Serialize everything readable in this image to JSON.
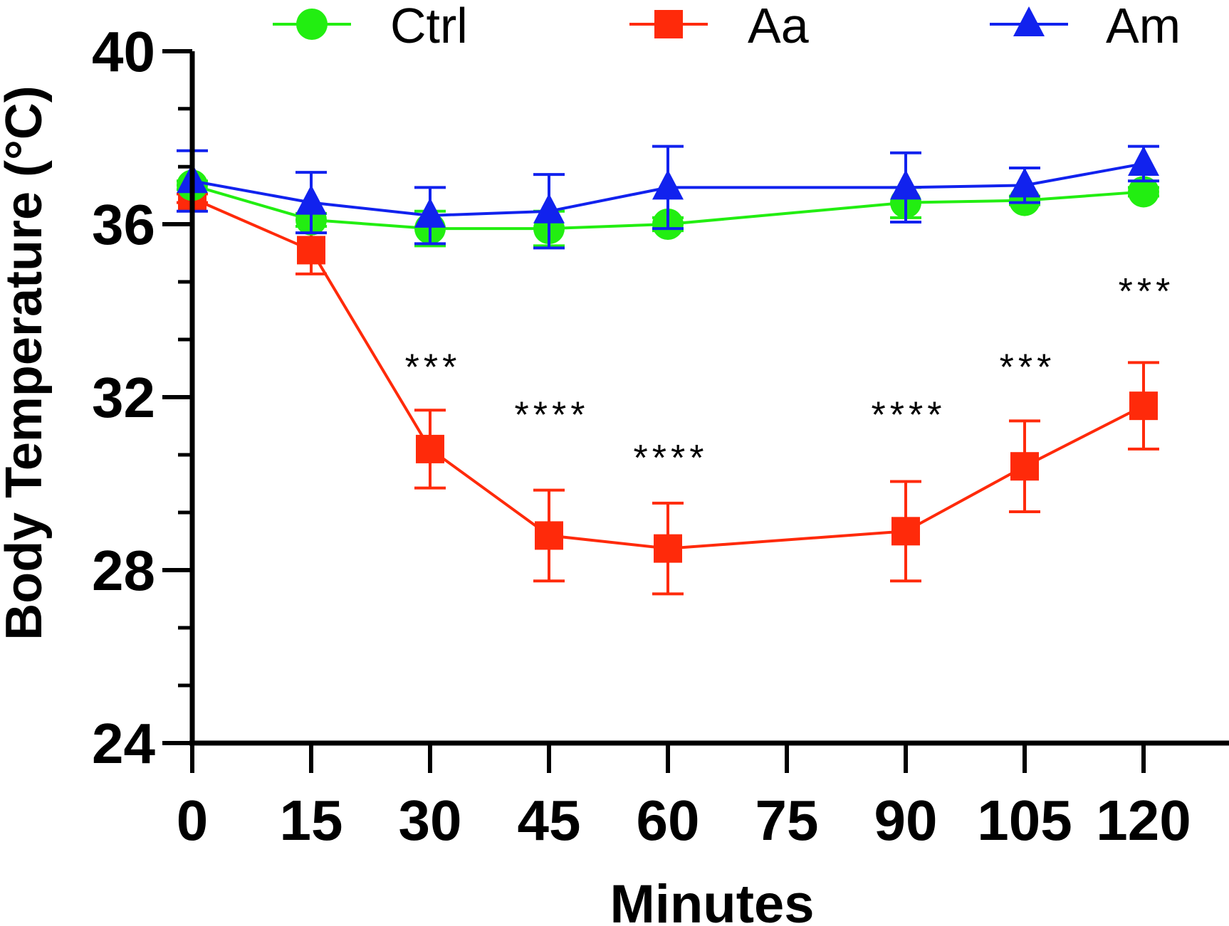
{
  "chart_data": {
    "type": "line",
    "title": "",
    "xlabel": "Minutes",
    "ylabel": "Body Temperature (°C)",
    "xlim": [
      0,
      130
    ],
    "ylim": [
      24,
      40
    ],
    "x_ticks": [
      0,
      15,
      30,
      45,
      60,
      75,
      90,
      105,
      120
    ],
    "x_tick_labels": [
      "0",
      "15",
      "30",
      "45",
      "60",
      "75",
      "90",
      "105",
      "120"
    ],
    "y_ticks": [
      24,
      28,
      32,
      36,
      40
    ],
    "y_tick_labels": [
      "24",
      "28",
      "32",
      "36",
      "40"
    ],
    "y_minor_step": 1.33,
    "grid": false,
    "legend_position": "top",
    "series": [
      {
        "name": "Ctrl",
        "color": "#22ee11",
        "marker": "circle",
        "x": [
          0,
          15,
          30,
          45,
          60,
          90,
          105,
          120
        ],
        "y": [
          36.9,
          36.1,
          35.9,
          35.9,
          36.0,
          36.5,
          36.55,
          36.75
        ],
        "err": [
          0.1,
          0.15,
          0.4,
          0.4,
          0.15,
          0.35,
          0.1,
          0.1
        ]
      },
      {
        "name": "Aa",
        "color": "#ff2a0a",
        "marker": "square",
        "x": [
          0,
          15,
          30,
          45,
          60,
          90,
          105,
          120
        ],
        "y": [
          36.6,
          35.4,
          30.8,
          28.8,
          28.5,
          28.9,
          30.4,
          31.8
        ],
        "err": [
          0.1,
          0.55,
          0.9,
          1.05,
          1.05,
          1.15,
          1.05,
          1.0
        ]
      },
      {
        "name": "Am",
        "color": "#1122ee",
        "marker": "triangle",
        "x": [
          0,
          15,
          30,
          45,
          60,
          90,
          105,
          120
        ],
        "y": [
          37.0,
          36.5,
          36.2,
          36.3,
          36.85,
          36.85,
          36.9,
          37.4
        ],
        "err": [
          0.7,
          0.7,
          0.65,
          0.85,
          0.95,
          0.8,
          0.4,
          0.4
        ]
      }
    ],
    "annotations": [
      {
        "x": 30,
        "y": 32.7,
        "text": "***"
      },
      {
        "x": 45,
        "y": 31.6,
        "text": "****"
      },
      {
        "x": 60,
        "y": 30.6,
        "text": "****"
      },
      {
        "x": 90,
        "y": 31.6,
        "text": "****"
      },
      {
        "x": 105,
        "y": 32.7,
        "text": "***"
      },
      {
        "x": 120,
        "y": 34.45,
        "text": "***"
      }
    ]
  }
}
